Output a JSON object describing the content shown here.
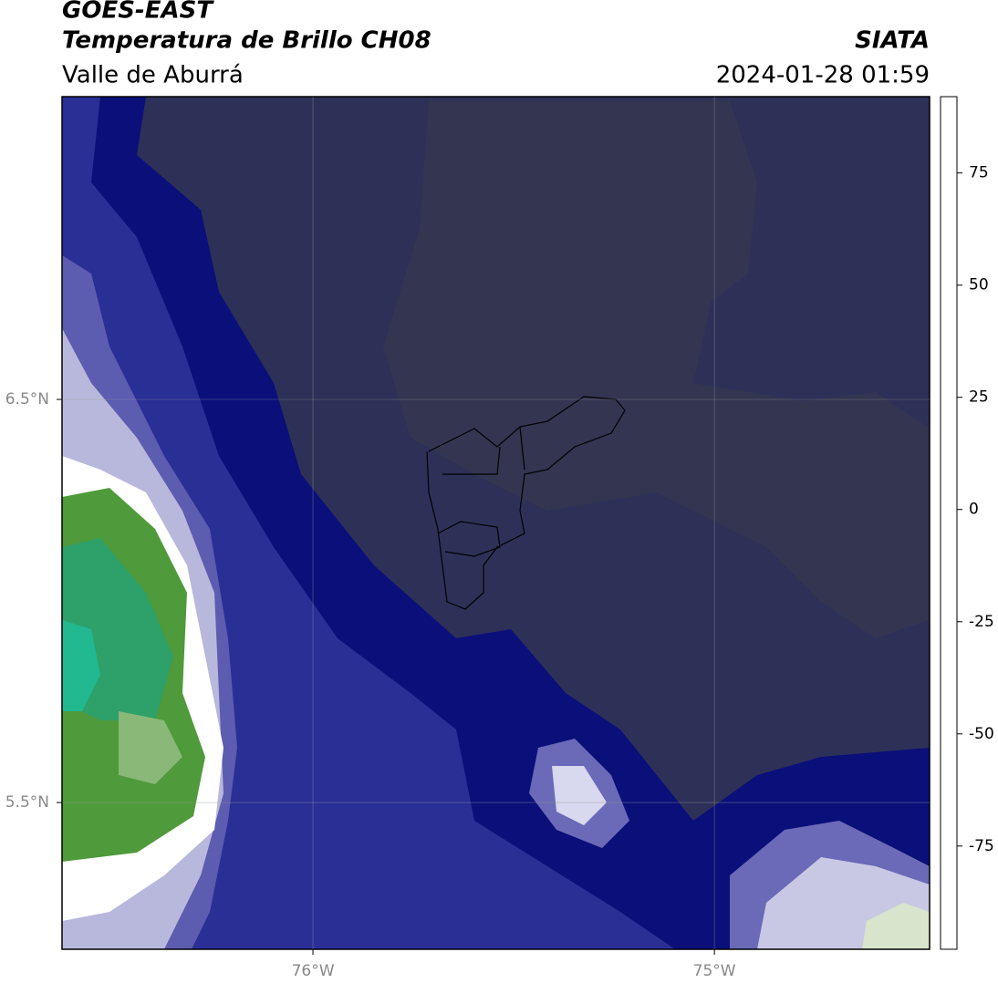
{
  "header": {
    "title": "GOES-EAST",
    "subtitle": "Temperatura de Brillo CH08",
    "region": "Valle de Aburrá",
    "agency": "SIATA",
    "timestamp": "2024-01-28 01:59"
  },
  "map": {
    "xlim": [
      -76.625,
      -74.464
    ],
    "ylim": [
      5.136,
      7.251
    ],
    "xticks": [
      {
        "value": -76,
        "label": "76°W"
      },
      {
        "value": -75,
        "label": "75°W"
      }
    ],
    "yticks": [
      {
        "value": 6.5,
        "label": "6.5°N"
      },
      {
        "value": 5.5,
        "label": "5.5°N"
      }
    ],
    "grid": true
  },
  "colorbar": {
    "ylim": [
      -98,
      92
    ],
    "ticks": [
      75,
      50,
      25,
      0,
      -25,
      -50,
      -75
    ],
    "stops": [
      {
        "value": -98,
        "color": "#ffffff"
      },
      {
        "value": -93,
        "color": "#ffffff"
      },
      {
        "value": -93,
        "color": "#00e5e0"
      },
      {
        "value": -80,
        "color": "#2a9a6a"
      },
      {
        "value": -65,
        "color": "#3c8a2a"
      },
      {
        "value": -58,
        "color": "#8ab070"
      },
      {
        "value": -52,
        "color": "#ffffff"
      },
      {
        "value": -47,
        "color": "#c8c8e0"
      },
      {
        "value": -38,
        "color": "#6a6ab8"
      },
      {
        "value": -30,
        "color": "#2a2a90"
      },
      {
        "value": -26,
        "color": "#00007a"
      },
      {
        "value": -24,
        "color": "#00007a"
      },
      {
        "value": -20,
        "color": "#6a6a30"
      },
      {
        "value": -12,
        "color": "#c8c800"
      },
      {
        "value": -7,
        "color": "#ffff00"
      },
      {
        "value": -2,
        "color": "#ff9a00"
      },
      {
        "value": 4,
        "color": "#ff3000"
      },
      {
        "value": 8,
        "color": "#ff0000"
      },
      {
        "value": 8,
        "color": "#000000"
      },
      {
        "value": 92,
        "color": "#000000"
      }
    ]
  }
}
